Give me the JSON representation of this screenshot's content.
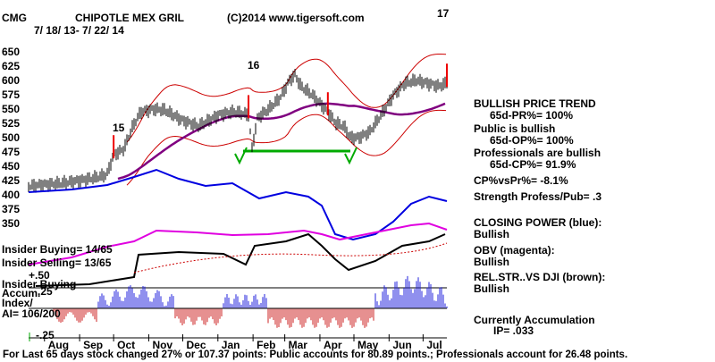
{
  "header": {
    "symbol": "CMG",
    "company": "CHIPOTLE MEX GRIL",
    "copyright": "(C)2014 www.tigersoft.com",
    "date_range": "7/ 18/ 13- 7/ 22/ 14",
    "signal_top_right": "17"
  },
  "chart_data": {
    "type": "line",
    "title": "CHIPOTLE MEX GRIL",
    "x_tick_labels": [
      "Aug",
      "Sep",
      "Oct",
      "Nov",
      "Dec",
      "Jan",
      "Feb",
      "Mar",
      "Apr",
      "May",
      "Jun",
      "Jul"
    ],
    "y_tick_labels": [
      "650",
      "625",
      "600",
      "575",
      "550",
      "525",
      "500",
      "475",
      "450",
      "425",
      "400",
      "375",
      "350"
    ],
    "ylim": [
      340,
      665
    ],
    "grid": false,
    "series": [
      {
        "name": "price",
        "x": [
          "2013-07-18",
          "2013-08-01",
          "2013-08-15",
          "2013-09-01",
          "2013-09-15",
          "2013-09-25",
          "2013-10-01",
          "2013-10-10",
          "2013-10-18",
          "2013-10-25",
          "2013-11-05",
          "2013-11-15",
          "2013-12-01",
          "2013-12-15",
          "2014-01-02",
          "2014-01-15",
          "2014-01-28",
          "2014-01-31",
          "2014-02-05",
          "2014-02-15",
          "2014-02-25",
          "2014-03-05",
          "2014-03-10",
          "2014-03-15",
          "2014-03-25",
          "2014-04-01",
          "2014-04-08",
          "2014-04-15",
          "2014-04-22",
          "2014-04-28",
          "2014-05-05",
          "2014-05-15",
          "2014-05-25",
          "2014-06-05",
          "2014-06-15",
          "2014-06-25",
          "2014-07-05",
          "2014-07-15",
          "2014-07-22"
        ],
        "values": [
          415,
          418,
          420,
          425,
          430,
          435,
          470,
          480,
          520,
          545,
          550,
          548,
          530,
          520,
          540,
          545,
          540,
          480,
          535,
          550,
          570,
          600,
          610,
          590,
          575,
          560,
          545,
          525,
          520,
          500,
          500,
          510,
          540,
          575,
          595,
          600,
          595,
          590,
          595
        ]
      },
      {
        "name": "CLOSING POWER (blue)",
        "note": "Bullish"
      },
      {
        "name": "OBV (magenta)",
        "note": "Bullish"
      },
      {
        "name": "REL.STR..VS DJI (brown)",
        "note": "Bullish"
      }
    ],
    "annotations": [
      "15",
      "16",
      "17"
    ]
  },
  "right_panel": {
    "trend_title": "BULLISH PRICE TREND",
    "pr": "65d-PR%= 100%",
    "public_title": "Public is bullish",
    "op": "65d-OP%= 100%",
    "pros_title": "Professionals are bullish",
    "cp": "65d-CP%= 91.9%",
    "cpvspr": "CP%vsPr%= -8.1%",
    "strength": "Strength Profess/Pub= .3",
    "closing_power": "CLOSING POWER (blue):",
    "closing_power_state": "Bullish",
    "obv": "OBV (magenta):",
    "obv_state": "Bullish",
    "relstr": "REL.STR..VS DJI (brown):",
    "relstr_state": "Bullish",
    "accum": "Currently Accumulation",
    "ip": "IP= .033"
  },
  "insider": {
    "buying": "Insider Buying= 14/65",
    "selling": "Insider Selling= 13/65",
    "plus50": "+.50",
    "buying2": "Insider Buying",
    "accum": "Accum.",
    "accum_val": ".25",
    "index": "Index/",
    "ai": "AI= 106/200",
    "minus25": "-.25"
  },
  "footer": "For Last 65 days stock changed  27% or  107.37 points:  Public accounts for  80.89 points.;  Professionals account for  26.48 points."
}
